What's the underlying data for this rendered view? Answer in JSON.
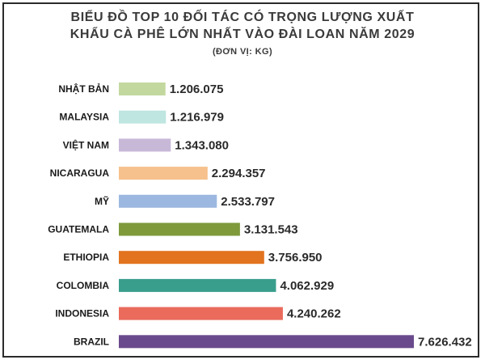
{
  "title": {
    "line1": "BIỂU ĐỒ TOP 10 ĐỐI TÁC CÓ TRỌNG LƯỢNG XUẤT",
    "line2": "KHẨU CÀ PHÊ LỚN NHẤT VÀO ĐÀI LOAN NĂM 2029",
    "subtitle": "(ĐƠN VỊ: KG)"
  },
  "chart_data": {
    "type": "bar",
    "orientation": "horizontal",
    "title": "BIỂU ĐỒ TOP 10 ĐỐI TÁC CÓ TRỌNG LƯỢNG XUẤT KHẨU CÀ PHÊ LỚN NHẤT VÀO ĐÀI LOAN NĂM 2029",
    "subtitle": "(ĐƠN VỊ: KG)",
    "xlabel": "",
    "ylabel": "",
    "xlim": [
      0,
      7626432
    ],
    "grid": false,
    "legend": "none",
    "categories": [
      "NHẬT BẢN",
      "MALAYSIA",
      "VIỆT NAM",
      "NICARAGUA",
      "MỸ",
      "GUATEMALA",
      "ETHIOPIA",
      "COLOMBIA",
      "INDONESIA",
      "BRAZIL"
    ],
    "values": [
      1206075,
      1216979,
      1343080,
      2294357,
      2533797,
      3131543,
      3756950,
      4062929,
      4240262,
      7626432
    ],
    "value_labels": [
      "1.206.075",
      "1.216.979",
      "1.343.080",
      "2.294.357",
      "2.533.797",
      "3.131.543",
      "3.756.950",
      "4.062.929",
      "4.240.262",
      "7.626.432"
    ],
    "colors": [
      "#c3d89e",
      "#bfe6e1",
      "#c8b8d8",
      "#f6c18c",
      "#9cb8e0",
      "#7e9a3b",
      "#e2731f",
      "#3a9e8d",
      "#ea6b5c",
      "#6a4a8c"
    ]
  }
}
